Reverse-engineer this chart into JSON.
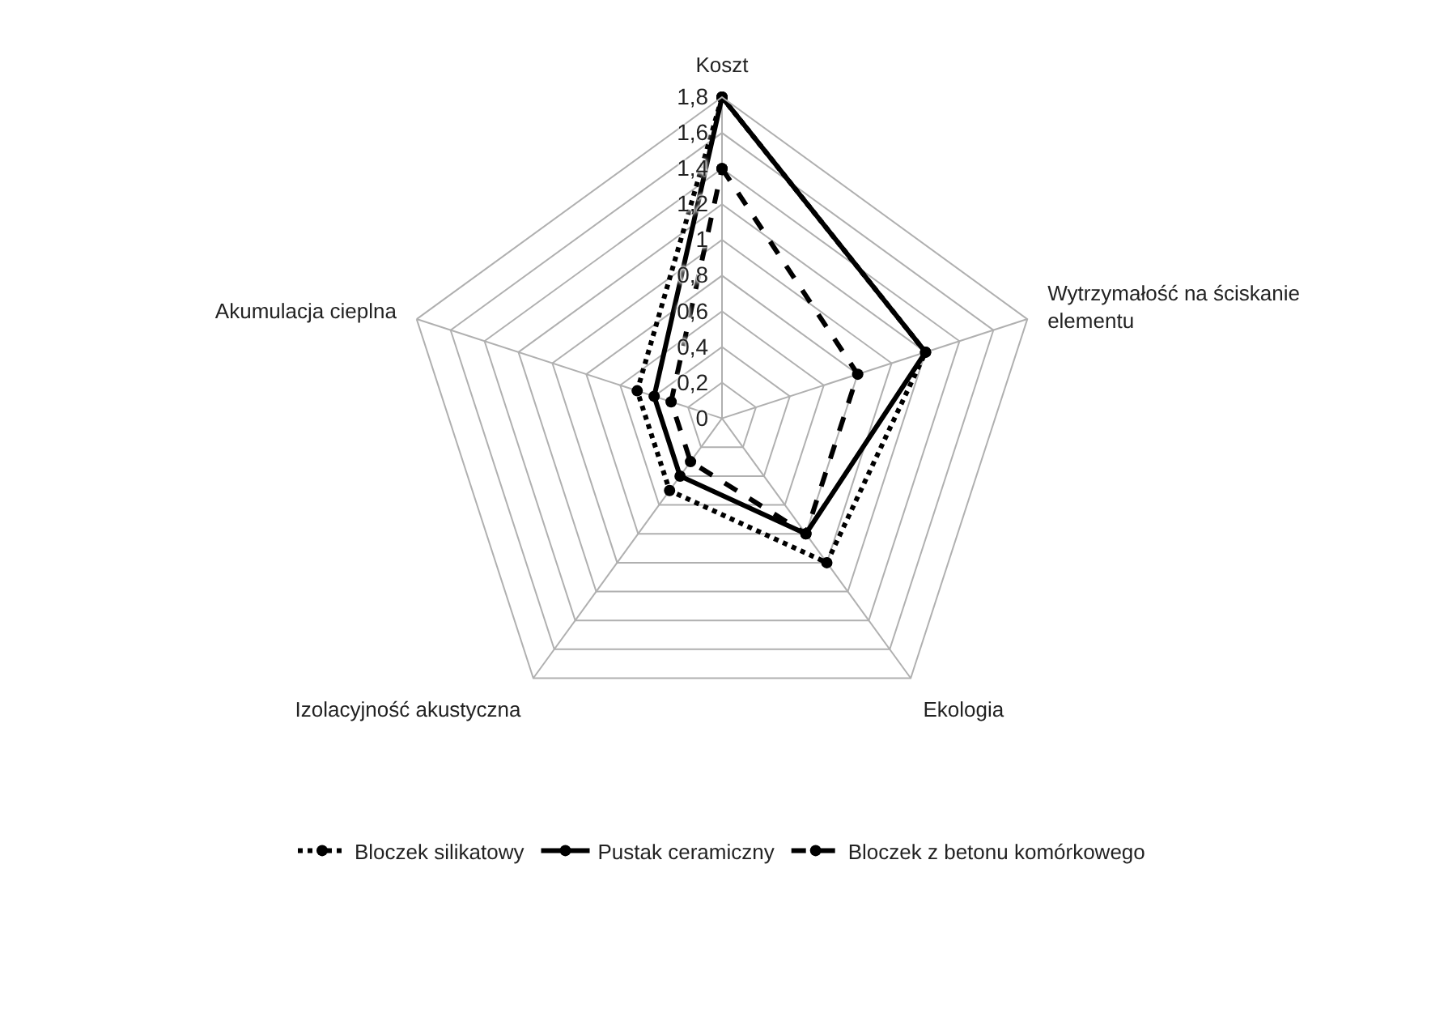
{
  "chart_data": {
    "type": "radar",
    "categories": [
      "Koszt",
      "Wytrzymałość na ściskanie\nelementu",
      "Ekologia",
      "Izolacyjność akustyczna",
      "Akumulacja cieplna"
    ],
    "series": [
      {
        "name": "Bloczek silikatowy",
        "color": "#000000",
        "line_style": "dotted",
        "values": [
          1.8,
          1.2,
          1.0,
          0.5,
          0.5
        ]
      },
      {
        "name": "Pustak ceramiczny",
        "color": "#000000",
        "line_style": "solid",
        "values": [
          1.8,
          1.2,
          0.8,
          0.4,
          0.4
        ]
      },
      {
        "name": "Bloczek z betonu komórkowego",
        "color": "#000000",
        "line_style": "dashed",
        "values": [
          1.4,
          0.8,
          0.8,
          0.3,
          0.3
        ]
      }
    ],
    "ylim": [
      0,
      1.8
    ],
    "yticks": [
      0,
      {
        "value": 0.2,
        "label": "0,2"
      },
      {
        "value": 0.4,
        "label": "0,4"
      },
      {
        "value": 0.6,
        "label": "0,6"
      },
      {
        "value": 0.8,
        "label": "0,8"
      },
      1,
      {
        "value": 1.2,
        "label": "1,2"
      },
      {
        "value": 1.4,
        "label": "1,4"
      },
      {
        "value": 1.6,
        "label": "1,6"
      },
      {
        "value": 1.8,
        "label": "1,8"
      }
    ],
    "grid": true,
    "legend": "bottom",
    "marker": "circle"
  }
}
